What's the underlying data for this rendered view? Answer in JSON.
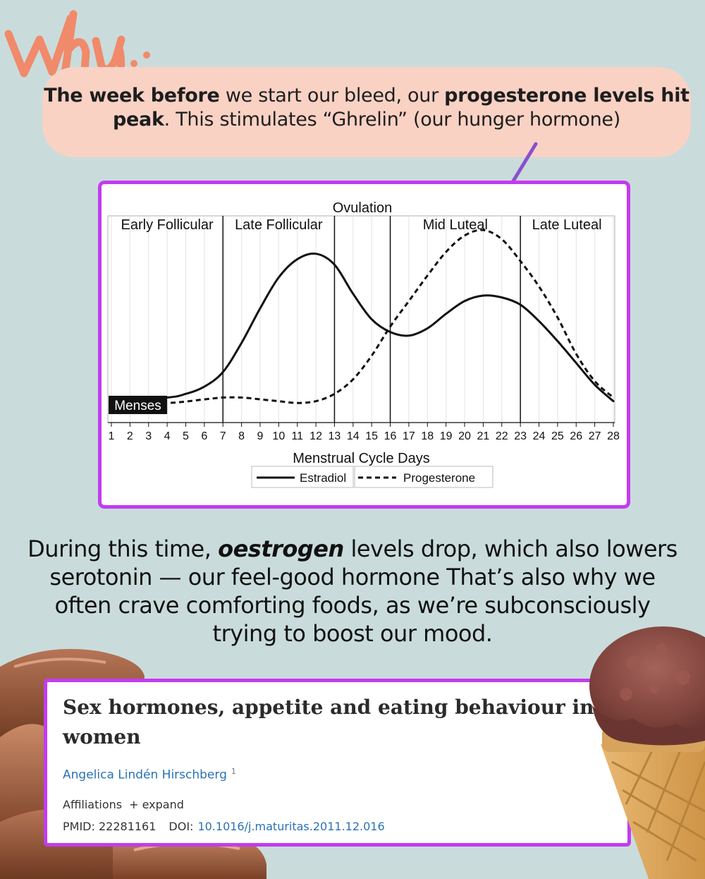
{
  "header": {
    "why_label": "Why..",
    "bubble": {
      "b1": "The week before",
      "t1": " we start our bleed, our ",
      "b2": "progesterone levels hit peak",
      "t2": ". This stimulates “Ghrelin” (our hunger hormone)"
    }
  },
  "colors": {
    "background": "#c9dcdb",
    "bubble": "#f9d2c4",
    "card_border": "#c43bf0",
    "arrow": "#8a4fd0",
    "why": "#f08a6a",
    "link": "#2a72b5"
  },
  "chart_data": {
    "type": "line",
    "title": "",
    "xlabel": "Menstrual Cycle Days",
    "ylabel": "",
    "xlim": [
      1,
      28
    ],
    "ylim": [
      0,
      100
    ],
    "x_ticks": [
      1,
      2,
      3,
      4,
      5,
      6,
      7,
      8,
      9,
      10,
      11,
      12,
      13,
      14,
      15,
      16,
      17,
      18,
      19,
      20,
      21,
      22,
      23,
      24,
      25,
      26,
      27,
      28
    ],
    "grid": true,
    "legend_position": "bottom",
    "phases": [
      {
        "label": "Early Follicular",
        "start": 1,
        "end": 7
      },
      {
        "label": "Late Follicular",
        "start": 7,
        "end": 13
      },
      {
        "label": "Ovulation",
        "start": 13,
        "end": 16
      },
      {
        "label": "Mid Luteal",
        "start": 16,
        "end": 23
      },
      {
        "label": "Late Luteal",
        "start": 23,
        "end": 28
      }
    ],
    "menses_label": "Menses",
    "menses_range": [
      1,
      4
    ],
    "series": [
      {
        "name": "Estradiol",
        "style": "solid",
        "x": [
          1,
          4,
          5,
          6,
          7,
          8,
          9,
          10,
          11,
          12,
          13,
          14,
          15,
          16,
          17,
          18,
          19,
          20,
          21,
          22,
          23,
          24,
          25,
          26,
          27,
          28
        ],
        "y": [
          4,
          6,
          8,
          12,
          20,
          36,
          55,
          72,
          82,
          85,
          79,
          63,
          49,
          42,
          40,
          44,
          52,
          59,
          62,
          61,
          57,
          48,
          37,
          25,
          13,
          4
        ]
      },
      {
        "name": "Progesterone",
        "style": "dashed",
        "x": [
          1,
          4,
          6,
          7,
          8,
          9,
          10,
          11,
          12,
          13,
          14,
          15,
          16,
          17,
          18,
          19,
          20,
          21,
          22,
          23,
          24,
          25,
          26,
          27,
          28
        ],
        "y": [
          3,
          3,
          5,
          6,
          6,
          5,
          4,
          3,
          4,
          8,
          16,
          29,
          45,
          59,
          73,
          86,
          95,
          98,
          93,
          81,
          67,
          50,
          30,
          15,
          6
        ]
      }
    ]
  },
  "body": {
    "p1": "During this time, ",
    "em": "oestrogen",
    "p2": " levels drop, which also lowers serotonin — our feel-good hormone That’s also why we often crave comforting foods, as we’re subconsciously trying to boost our mood."
  },
  "paper": {
    "title": "Sex hormones, appetite and eating behaviour in women",
    "author": "Angelica Lindén Hirschberg",
    "author_sup": "1",
    "affiliations_label": "Affiliations",
    "expand_label": "+ expand",
    "pmid_label": "PMID: 22281161",
    "doi_label": "DOI:",
    "doi": "10.1016/j.maturitas.2011.12.016"
  }
}
